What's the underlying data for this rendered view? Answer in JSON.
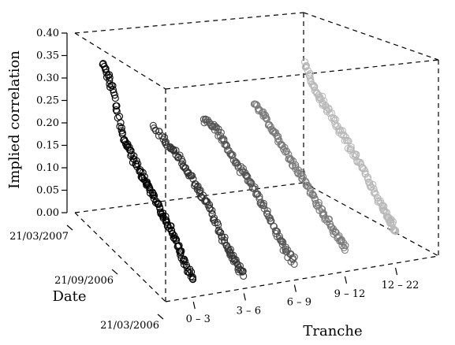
{
  "chart_data": {
    "type": "scatter",
    "projection": "3d",
    "zlabel": "Implied correlation",
    "ylabel": "Date",
    "xlabel": "Tranche",
    "z_ticks": [
      "0.00",
      "0.05",
      "0.10",
      "0.15",
      "0.20",
      "0.25",
      "0.30",
      "0.35",
      "0.40"
    ],
    "z_lim": [
      0,
      0.4
    ],
    "date_ticks": [
      "21/03/2006",
      "21/09/2006",
      "21/03/2007"
    ],
    "tranche_ticks": [
      "0 – 3",
      "3 – 6",
      "6 – 9",
      "9 – 12",
      "12 – 22"
    ],
    "marker": "open-circle",
    "grid": false,
    "series": [
      {
        "tranche_index": 0,
        "color": "#000000",
        "points": [
          {
            "date": "2007-03-21",
            "value": 0.32
          },
          {
            "date": "2007-02-10",
            "value": 0.29
          },
          {
            "date": "2007-01-05",
            "value": 0.21
          },
          {
            "date": "2006-12-01",
            "value": 0.185
          },
          {
            "date": "2006-10-25",
            "value": 0.165
          },
          {
            "date": "2006-09-20",
            "value": 0.15
          },
          {
            "date": "2006-08-15",
            "value": 0.13
          },
          {
            "date": "2006-07-10",
            "value": 0.11
          },
          {
            "date": "2006-06-05",
            "value": 0.09
          },
          {
            "date": "2006-05-01",
            "value": 0.06
          },
          {
            "date": "2006-03-21",
            "value": 0.04
          }
        ]
      },
      {
        "tranche_index": 1,
        "color": "#333333",
        "points": [
          {
            "date": "2007-03-21",
            "value": 0.165
          },
          {
            "date": "2007-01-15",
            "value": 0.155
          },
          {
            "date": "2006-12-01",
            "value": 0.15
          },
          {
            "date": "2006-10-15",
            "value": 0.13
          },
          {
            "date": "2006-08-30",
            "value": 0.115
          },
          {
            "date": "2006-07-15",
            "value": 0.09
          },
          {
            "date": "2006-06-01",
            "value": 0.06
          },
          {
            "date": "2006-05-01",
            "value": 0.04
          },
          {
            "date": "2006-03-21",
            "value": 0.03
          }
        ]
      },
      {
        "tranche_index": 2,
        "color": "#555555",
        "points": [
          {
            "date": "2007-03-21",
            "value": 0.16
          },
          {
            "date": "2007-02-01",
            "value": 0.165
          },
          {
            "date": "2006-12-15",
            "value": 0.15
          },
          {
            "date": "2006-10-30",
            "value": 0.13
          },
          {
            "date": "2006-09-15",
            "value": 0.12
          },
          {
            "date": "2006-07-30",
            "value": 0.1
          },
          {
            "date": "2006-06-15",
            "value": 0.075
          },
          {
            "date": "2006-05-01",
            "value": 0.05
          },
          {
            "date": "2006-03-21",
            "value": 0.04
          }
        ]
      },
      {
        "tranche_index": 3,
        "color": "#7a7a7a",
        "points": [
          {
            "date": "2007-03-21",
            "value": 0.175
          },
          {
            "date": "2007-02-01",
            "value": 0.17
          },
          {
            "date": "2006-12-15",
            "value": 0.15
          },
          {
            "date": "2006-10-30",
            "value": 0.13
          },
          {
            "date": "2006-09-15",
            "value": 0.12
          },
          {
            "date": "2006-07-30",
            "value": 0.1
          },
          {
            "date": "2006-06-15",
            "value": 0.08
          },
          {
            "date": "2006-05-01",
            "value": 0.065
          },
          {
            "date": "2006-03-21",
            "value": 0.055
          }
        ]
      },
      {
        "tranche_index": 4,
        "color": "#b8b8b8",
        "points": [
          {
            "date": "2007-03-21",
            "value": 0.25
          },
          {
            "date": "2007-02-10",
            "value": 0.21
          },
          {
            "date": "2007-01-05",
            "value": 0.2
          },
          {
            "date": "2006-11-20",
            "value": 0.185
          },
          {
            "date": "2006-10-05",
            "value": 0.165
          },
          {
            "date": "2006-08-20",
            "value": 0.145
          },
          {
            "date": "2006-07-05",
            "value": 0.125
          },
          {
            "date": "2006-05-20",
            "value": 0.1
          },
          {
            "date": "2006-04-15",
            "value": 0.085
          },
          {
            "date": "2006-03-21",
            "value": 0.07
          }
        ]
      }
    ]
  }
}
